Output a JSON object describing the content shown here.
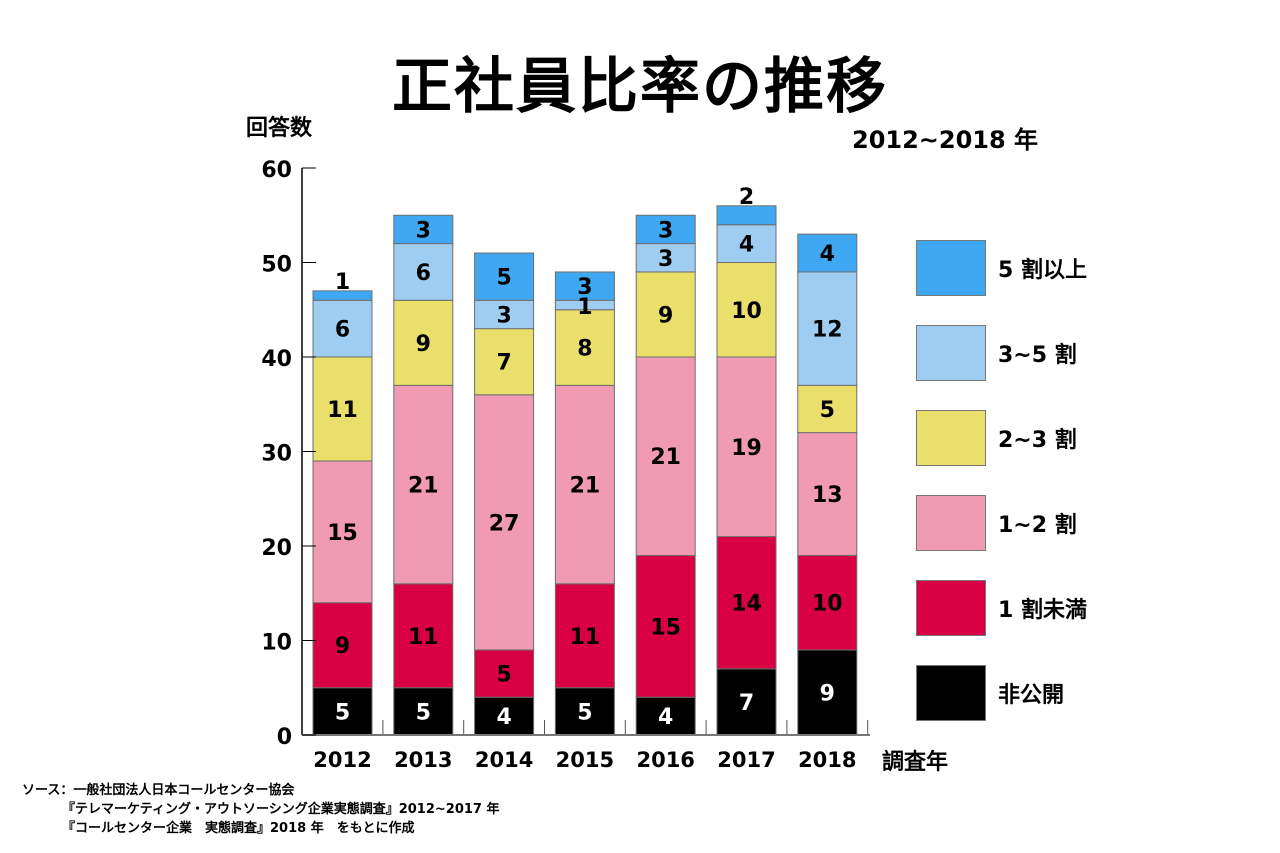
{
  "title": "正社員比率の推移",
  "y_axis_label": "回答数",
  "period_label": "2012~2018 年",
  "x_axis_label": "調査年",
  "source": {
    "line1": "ソース：一般社団法人日本コールセンター協会",
    "line2": "『テレマーケティング・アウトソーシング企業実態調査』2012~2017 年",
    "line3": "『コールセンター企業　実態調査』2018 年　をもとに作成"
  },
  "chart_data": {
    "type": "bar",
    "stacked": true,
    "title": "正社員比率の推移",
    "subtitle": "2012~2018 年",
    "xlabel": "調査年",
    "ylabel": "回答数",
    "ylim": [
      0,
      60
    ],
    "yticks": [
      0,
      10,
      20,
      30,
      40,
      50,
      60
    ],
    "grid": false,
    "legend_position": "right",
    "categories": [
      "2012",
      "2013",
      "2014",
      "2015",
      "2016",
      "2017",
      "2018"
    ],
    "series": [
      {
        "name": "非公開",
        "color": "#000000",
        "label_color": "#ffffff",
        "values": [
          5,
          5,
          4,
          5,
          4,
          7,
          9
        ]
      },
      {
        "name": "1 割未満",
        "color": "#d80042",
        "label_color": "#000000",
        "values": [
          9,
          11,
          5,
          11,
          15,
          14,
          10
        ]
      },
      {
        "name": "1~2 割",
        "color": "#f09ab4",
        "label_color": "#000000",
        "values": [
          15,
          21,
          27,
          21,
          21,
          19,
          13
        ]
      },
      {
        "name": "2~3 割",
        "color": "#ebdf6b",
        "label_color": "#000000",
        "values": [
          11,
          9,
          7,
          8,
          9,
          10,
          5
        ]
      },
      {
        "name": "3~5 割",
        "color": "#9fcdf1",
        "label_color": "#000000",
        "values": [
          6,
          6,
          3,
          1,
          3,
          4,
          12
        ]
      },
      {
        "name": "5 割以上",
        "color": "#40a8f2",
        "label_color": "#000000",
        "values": [
          1,
          3,
          5,
          3,
          3,
          2,
          4
        ]
      }
    ],
    "legend_order": [
      "5 割以上",
      "3~5 割",
      "2~3 割",
      "1~2 割",
      "1 割未満",
      "非公開"
    ]
  }
}
